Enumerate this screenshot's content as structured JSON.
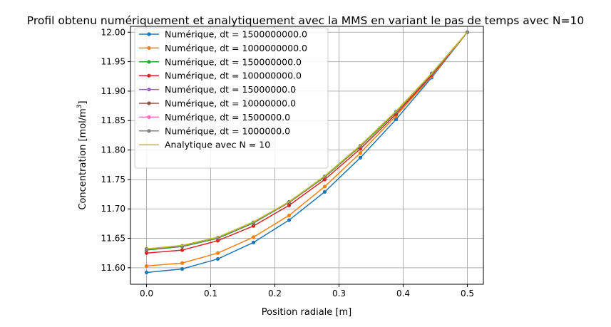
{
  "chart_data": {
    "type": "line",
    "title": "Profil obtenu numériquement et analytiquement avec la MMS en variant le pas de temps avec N=10",
    "xlabel": "Position radiale [m]",
    "ylabel_main": "Concentration [mol/m",
    "ylabel_sup": "3",
    "ylabel_end": "]",
    "xlim": [
      -0.025,
      0.525
    ],
    "ylim": [
      11.572,
      12.01
    ],
    "xticks": [
      0.0,
      0.1,
      0.2,
      0.3,
      0.4,
      0.5
    ],
    "xtick_labels": [
      "0.0",
      "0.1",
      "0.2",
      "0.3",
      "0.4",
      "0.5"
    ],
    "yticks": [
      11.6,
      11.65,
      11.7,
      11.75,
      11.8,
      11.85,
      11.9,
      11.95,
      12.0
    ],
    "ytick_labels": [
      "11.60",
      "11.65",
      "11.70",
      "11.75",
      "11.80",
      "11.85",
      "11.90",
      "11.95",
      "12.00"
    ],
    "grid": true,
    "legend_position": "top-left",
    "x": [
      0.0,
      0.0556,
      0.1111,
      0.1667,
      0.2222,
      0.2778,
      0.3333,
      0.3889,
      0.4444,
      0.5
    ],
    "series": [
      {
        "name": "Numérique, dt = 1500000000.0",
        "color": "#1f77b4",
        "markers": true,
        "values": [
          11.592,
          11.598,
          11.615,
          11.643,
          11.681,
          11.729,
          11.787,
          11.852,
          11.923,
          12.0
        ]
      },
      {
        "name": "Numérique, dt = 1000000000.0",
        "color": "#ff7f0e",
        "markers": true,
        "values": [
          11.603,
          11.608,
          11.625,
          11.652,
          11.689,
          11.738,
          11.795,
          11.858,
          11.925,
          12.0
        ]
      },
      {
        "name": "Numérique, dt = 150000000.0",
        "color": "#2ca02c",
        "markers": true,
        "values": [
          11.63,
          11.636,
          11.65,
          11.676,
          11.711,
          11.754,
          11.806,
          11.864,
          11.929,
          12.0
        ]
      },
      {
        "name": "Numérique, dt = 100000000.0",
        "color": "#d62728",
        "markers": true,
        "values": [
          11.625,
          11.63,
          11.646,
          11.671,
          11.706,
          11.75,
          11.802,
          11.861,
          11.927,
          12.0
        ]
      },
      {
        "name": "Numérique, dt = 15000000.0",
        "color": "#9467bd",
        "markers": true,
        "values": [
          11.631,
          11.637,
          11.651,
          11.677,
          11.711,
          11.755,
          11.807,
          11.865,
          11.929,
          12.0
        ]
      },
      {
        "name": "Numérique, dt = 10000000.0",
        "color": "#8c564b",
        "markers": true,
        "values": [
          11.631,
          11.637,
          11.651,
          11.677,
          11.711,
          11.755,
          11.807,
          11.865,
          11.929,
          12.0
        ]
      },
      {
        "name": "Numérique, dt = 1500000.0",
        "color": "#e377c2",
        "markers": true,
        "values": [
          11.632,
          11.637,
          11.651,
          11.677,
          11.712,
          11.755,
          11.807,
          11.865,
          11.93,
          12.0
        ]
      },
      {
        "name": "Numérique, dt = 1000000.0",
        "color": "#7f7f7f",
        "markers": true,
        "values": [
          11.632,
          11.637,
          11.651,
          11.677,
          11.712,
          11.755,
          11.807,
          11.865,
          11.93,
          12.0
        ]
      },
      {
        "name": "Analytique avec N = 10",
        "color": "#bcbd22",
        "markers": false,
        "values": [
          11.632,
          11.638,
          11.652,
          11.678,
          11.712,
          11.756,
          11.808,
          11.866,
          11.93,
          12.0
        ]
      }
    ]
  }
}
